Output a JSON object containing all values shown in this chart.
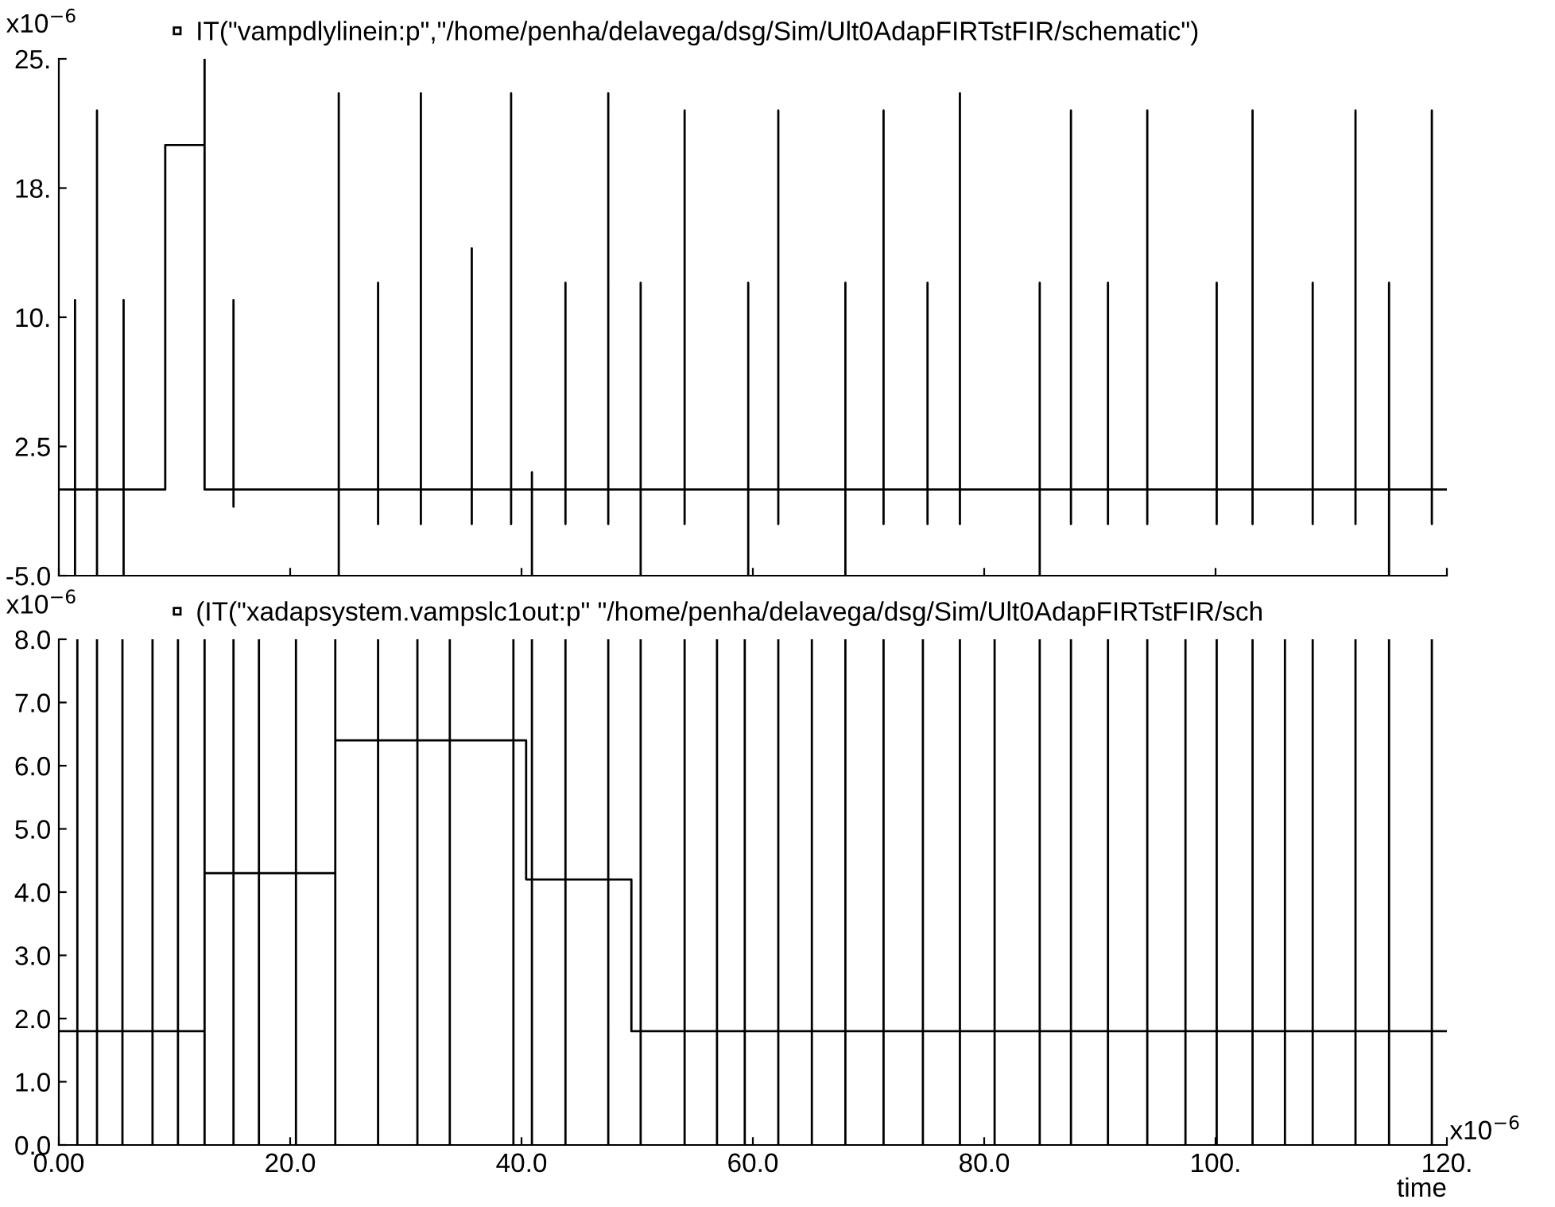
{
  "chart_data": [
    {
      "type": "line",
      "legend": "top left",
      "marker": "none",
      "line_style": "solid",
      "grid": false,
      "tick_labels": "y",
      "xlim": [
        0,
        120
      ],
      "ylim": [
        -5,
        25
      ],
      "yticks": [
        {
          "value": -5,
          "label": "-5.0"
        },
        2.5,
        {
          "value": 10,
          "label": "10."
        },
        {
          "value": 17.5,
          "label": "18."
        },
        {
          "value": 25,
          "label": "25."
        }
      ],
      "annotations": [
        "x10$^{−6}$"
      ],
      "series": [
        {
          "name": "IT(\"vampdlylinein:p\",\"/home/penha/delavega/dsg/Sim/Ult0AdapFIRTstFIR/schematic\")",
          "color": "#000000",
          "x": [
            0,
            1.4,
            1.4,
            1.4,
            1.4,
            3.3,
            3.3,
            3.3,
            3.3,
            5.6,
            5.6,
            5.6,
            5.6,
            9.2,
            9.2,
            12.6,
            12.6,
            12.6,
            15.1,
            15.1,
            15.1,
            15.1,
            24.2,
            24.2,
            24.2,
            24.2,
            27.6,
            27.6,
            27.6,
            27.6,
            31.3,
            31.3,
            31.3,
            31.3,
            35.7,
            35.7,
            35.7,
            35.7,
            39.1,
            39.1,
            39.1,
            39.1,
            40.9,
            40.9,
            40.9,
            40.9,
            43.8,
            43.8,
            43.8,
            43.8,
            47.5,
            47.5,
            47.5,
            47.5,
            50.3,
            50.3,
            50.3,
            50.3,
            54.1,
            54.1,
            54.1,
            54.1,
            59.6,
            59.6,
            59.6,
            59.6,
            62.2,
            62.2,
            62.2,
            62.2,
            68.0,
            68.0,
            68.0,
            68.0,
            71.3,
            71.3,
            71.3,
            71.3,
            75.1,
            75.1,
            75.1,
            75.1,
            77.9,
            77.9,
            77.9,
            77.9,
            84.8,
            84.8,
            84.8,
            84.8,
            87.5,
            87.5,
            87.5,
            87.5,
            90.7,
            90.7,
            90.7,
            90.7,
            94.1,
            94.1,
            94.1,
            94.1,
            100.1,
            100.1,
            100.1,
            100.1,
            103.2,
            103.2,
            103.2,
            103.2,
            108.4,
            108.4,
            108.4,
            108.4,
            112.1,
            112.1,
            112.1,
            112.1,
            115.0,
            115.0,
            115.0,
            115.0,
            118.7,
            118.7,
            118.7,
            118.7,
            120
          ],
          "values": [
            0,
            0,
            11,
            -5,
            0,
            0,
            22,
            -5,
            0,
            0,
            11,
            -5,
            0,
            0,
            20,
            20,
            25,
            0,
            0,
            11,
            -1,
            0,
            0,
            23,
            -5,
            0,
            0,
            12,
            -2,
            0,
            0,
            23,
            -2,
            0,
            0,
            14,
            -2,
            0,
            0,
            23,
            -2,
            0,
            0,
            1,
            -5,
            0,
            0,
            12,
            -2,
            0,
            0,
            23,
            -2,
            0,
            0,
            12,
            -5,
            0,
            0,
            22,
            -2,
            0,
            0,
            12,
            -5,
            0,
            0,
            22,
            -2,
            0,
            0,
            12,
            -5,
            0,
            0,
            22,
            -2,
            0,
            0,
            12,
            -2,
            0,
            0,
            23,
            -2,
            0,
            0,
            12,
            -5,
            0,
            0,
            22,
            -2,
            0,
            0,
            12,
            -2,
            0,
            0,
            22,
            -2,
            0,
            0,
            12,
            -2,
            0,
            0,
            22,
            -2,
            0,
            0,
            12,
            -2,
            0,
            0,
            22,
            -2,
            0,
            0,
            12,
            -5,
            0,
            0,
            22,
            -2,
            0,
            0
          ]
        }
      ]
    },
    {
      "type": "line",
      "legend": "top left",
      "marker": "none",
      "line_style": "solid",
      "grid": false,
      "xlabel": "time",
      "xlim": [
        0,
        120
      ],
      "ylim": [
        0,
        8
      ],
      "xticks": [
        {
          "value": 0,
          "label": "0.00"
        },
        {
          "value": 20,
          "label": "20.0"
        },
        {
          "value": 40,
          "label": "40.0"
        },
        {
          "value": 60,
          "label": "60.0"
        },
        {
          "value": 80,
          "label": "80.0"
        },
        {
          "value": 100,
          "label": "100."
        },
        {
          "value": 120,
          "label": "120."
        }
      ],
      "yticks": [
        {
          "value": 0,
          "label": "0.0"
        },
        {
          "value": 1,
          "label": "1.0"
        },
        {
          "value": 2,
          "label": "2.0"
        },
        {
          "value": 3,
          "label": "3.0"
        },
        {
          "value": 4,
          "label": "4.0"
        },
        {
          "value": 5,
          "label": "5.0"
        },
        {
          "value": 6,
          "label": "6.0"
        },
        {
          "value": 7,
          "label": "7.0"
        },
        {
          "value": 8,
          "label": "8.0"
        }
      ],
      "annotations": [
        "x10$^{−6}$",
        "x10$^{−6}$"
      ],
      "series": [
        {
          "name": "(IT(\"xadapsystem.vampslc1out:p\" \"/home/penha/delavega/dsg/Sim/Ult0AdapFIRTstFIR/sch",
          "color": "#000000",
          "x": [
            0,
            1.6,
            1.6,
            1.6,
            1.6,
            3.3,
            3.3,
            3.3,
            3.3,
            5.5,
            5.5,
            5.5,
            5.5,
            8.1,
            8.1,
            8.1,
            8.1,
            10.3,
            10.3,
            10.3,
            10.3,
            12.6,
            12.6,
            12.6,
            12.6,
            15.1,
            15.1,
            15.1,
            15.1,
            17.3,
            17.3,
            17.3,
            17.3,
            20.5,
            20.5,
            20.5,
            20.5,
            23.9,
            23.9,
            23.9,
            23.9,
            27.6,
            27.6,
            27.6,
            27.6,
            31.0,
            31.0,
            31.0,
            31.0,
            33.8,
            33.8,
            33.8,
            33.8,
            39.3,
            39.3,
            39.3,
            39.3,
            40.4,
            40.4,
            40.9,
            40.9,
            40.9,
            40.9,
            43.8,
            43.8,
            43.8,
            43.8,
            47.5,
            47.5,
            47.5,
            47.5,
            49.5,
            49.5,
            50.3,
            50.3,
            50.3,
            50.3,
            54.1,
            54.1,
            54.1,
            54.1,
            56.9,
            56.9,
            56.9,
            56.9,
            59.3,
            59.3,
            59.3,
            59.3,
            62.2,
            62.2,
            62.2,
            62.2,
            65.1,
            65.1,
            65.1,
            65.1,
            68.0,
            68.0,
            68.0,
            68.0,
            71.3,
            71.3,
            71.3,
            71.3,
            74.7,
            74.7,
            74.7,
            74.7,
            77.9,
            77.9,
            77.9,
            77.9,
            80.9,
            80.9,
            80.9,
            80.9,
            84.8,
            84.8,
            84.8,
            84.8,
            87.5,
            87.5,
            87.5,
            87.5,
            90.7,
            90.7,
            90.7,
            90.7,
            94.1,
            94.1,
            94.1,
            94.1,
            97.4,
            97.4,
            97.4,
            97.4,
            100.1,
            100.1,
            100.1,
            100.1,
            103.2,
            103.2,
            103.2,
            103.2,
            106.0,
            106.0,
            106.0,
            106.0,
            108.4,
            108.4,
            108.4,
            108.4,
            112.1,
            112.1,
            112.1,
            112.1,
            115.0,
            115.0,
            115.0,
            115.0,
            118.7,
            118.7,
            118.7,
            118.7,
            120
          ],
          "values": [
            1.8,
            1.8,
            8,
            0,
            1.8,
            1.8,
            8,
            0,
            1.8,
            1.8,
            8,
            0,
            1.8,
            1.8,
            8,
            0,
            1.8,
            1.8,
            8,
            0,
            1.8,
            1.8,
            8,
            0,
            4.3,
            4.3,
            8,
            0,
            4.3,
            4.3,
            8,
            0,
            4.3,
            4.3,
            8,
            0,
            4.3,
            4.3,
            8,
            0,
            6.4,
            6.4,
            8,
            0,
            6.4,
            6.4,
            8,
            0,
            6.4,
            6.4,
            8,
            0,
            6.4,
            6.4,
            8,
            0,
            6.4,
            6.4,
            4.2,
            4.2,
            8,
            0,
            4.2,
            4.2,
            8,
            0,
            4.2,
            4.2,
            8,
            0,
            4.2,
            4.2,
            1.8,
            1.8,
            8,
            0,
            1.8,
            1.8,
            8,
            0,
            1.8,
            1.8,
            8,
            0,
            1.8,
            1.8,
            8,
            0,
            1.8,
            1.8,
            8,
            0,
            1.8,
            1.8,
            8,
            0,
            1.8,
            1.8,
            8,
            0,
            1.8,
            1.8,
            8,
            0,
            1.8,
            1.8,
            8,
            0,
            1.8,
            1.8,
            8,
            0,
            1.8,
            1.8,
            8,
            0,
            1.8,
            1.8,
            8,
            0,
            1.8,
            1.8,
            8,
            0,
            1.8,
            1.8,
            8,
            0,
            1.8,
            1.8,
            8,
            0,
            1.8,
            1.8,
            8,
            0,
            1.8,
            1.8,
            8,
            0,
            1.8,
            1.8,
            8,
            0,
            1.8,
            1.8,
            8,
            0,
            1.8,
            1.8,
            8,
            0,
            1.8,
            1.8,
            8,
            0,
            1.8,
            1.8,
            8,
            0,
            1.8,
            1.8,
            8,
            0,
            1.8,
            1.8
          ]
        }
      ]
    }
  ]
}
